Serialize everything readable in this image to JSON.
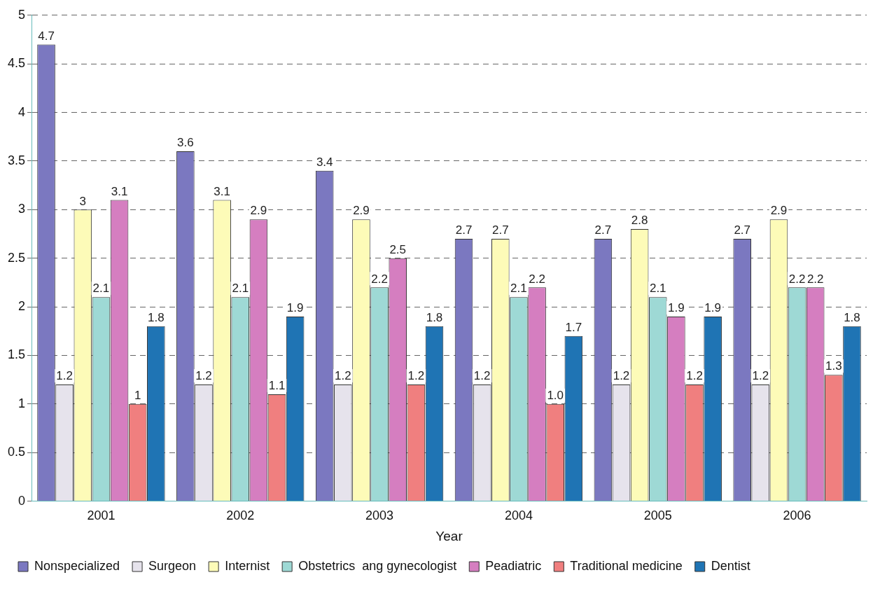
{
  "chart_data": {
    "type": "bar",
    "xlabel": "Year",
    "categories": [
      "2001",
      "2002",
      "2003",
      "2004",
      "2005",
      "2006"
    ],
    "series": [
      {
        "name": "Nonspecialized",
        "color": "#7b78c0",
        "values": [
          4.7,
          3.6,
          3.4,
          2.7,
          2.7,
          2.7
        ],
        "value_labels": [
          "4.7",
          "3.6",
          "3.4",
          "2.7",
          "2.7",
          "2.7"
        ]
      },
      {
        "name": "Surgeon",
        "color": "#e6e3ec",
        "values": [
          1.2,
          1.2,
          1.2,
          1.2,
          1.2,
          1.2
        ],
        "value_labels": [
          "1.2",
          "1.2",
          "1.2",
          "1.2",
          "1.2",
          "1.2"
        ]
      },
      {
        "name": "Internist",
        "color": "#fdfbb8",
        "values": [
          3,
          3.1,
          2.9,
          2.7,
          2.8,
          2.9
        ],
        "value_labels": [
          "3",
          "3.1",
          "2.9",
          "2.7",
          "2.8",
          "2.9"
        ]
      },
      {
        "name": "Obstetrics  ang gynecologist",
        "color": "#9ed9d5",
        "values": [
          2.1,
          2.1,
          2.2,
          2.1,
          2.1,
          2.2
        ],
        "value_labels": [
          "2.1",
          "2.1",
          "2.2",
          "2.1",
          "2.1",
          "2.2"
        ]
      },
      {
        "name": "Peadiatric",
        "color": "#d57ec0",
        "values": [
          3.1,
          2.9,
          2.5,
          2.2,
          1.9,
          2.2
        ],
        "value_labels": [
          "3.1",
          "2.9",
          "2.5",
          "2.2",
          "1.9",
          "2.2"
        ]
      },
      {
        "name": "Traditional medicine",
        "color": "#f07f7f",
        "values": [
          1,
          1.1,
          1.2,
          1.0,
          1.2,
          1.3
        ],
        "value_labels": [
          "1",
          "1.1",
          "1.2",
          "1.0",
          "1.2",
          "1.3"
        ]
      },
      {
        "name": "Dentist",
        "color": "#1f74b4",
        "values": [
          1.8,
          1.9,
          1.8,
          1.7,
          1.9,
          1.8
        ],
        "value_labels": [
          "1.8",
          "1.9",
          "1.8",
          "1.7",
          "1.9",
          "1.8"
        ]
      }
    ],
    "ylim": [
      0,
      5
    ],
    "yticks": [
      0,
      0.5,
      1,
      1.5,
      2,
      2.5,
      3,
      3.5,
      4,
      4.5,
      5
    ],
    "grid": "y",
    "legend": "bottom"
  }
}
